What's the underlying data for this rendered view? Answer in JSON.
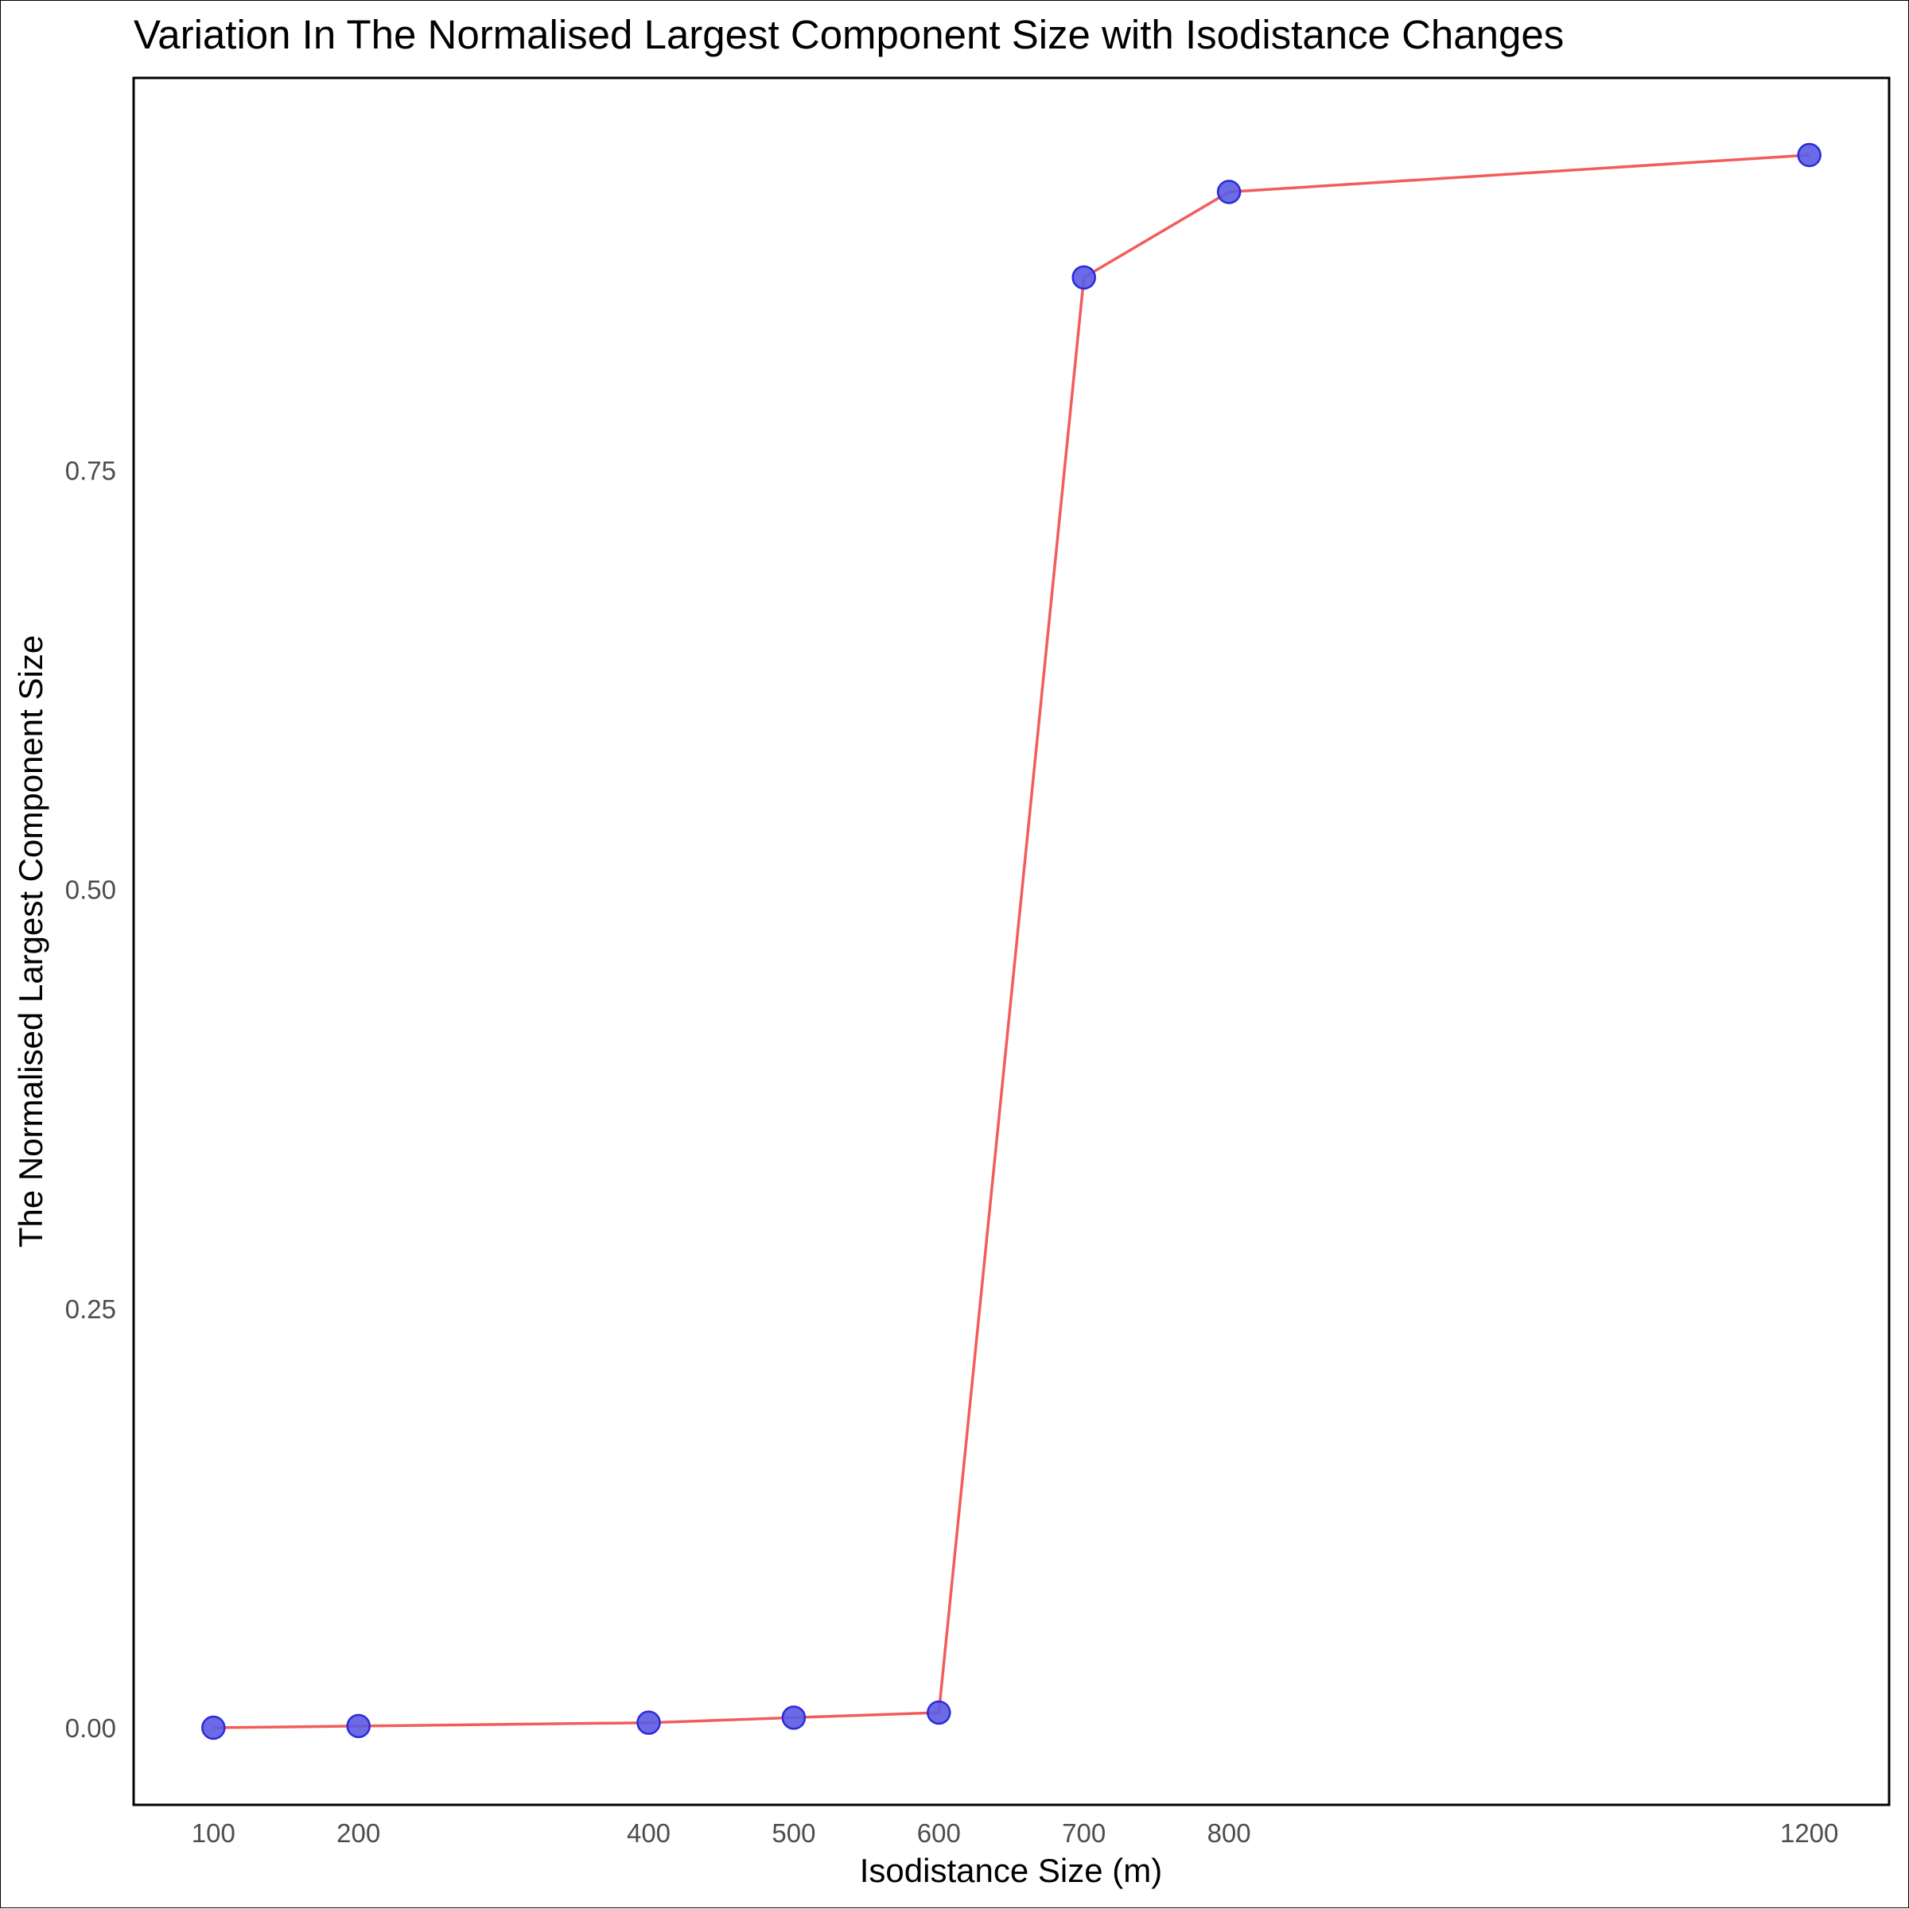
{
  "chart_data": {
    "type": "line",
    "title": "Variation In The Normalised Largest Component Size with Isodistance Changes",
    "xlabel": "Isodistance Size (m)",
    "ylabel": "The Normalised Largest Component Size",
    "x": [
      100,
      200,
      400,
      500,
      600,
      700,
      800,
      1200
    ],
    "series": [
      {
        "values": [
          0.0,
          0.001,
          0.003,
          0.006,
          0.009,
          0.865,
          0.916,
          0.938
        ]
      }
    ],
    "x_ticks": [
      100,
      200,
      400,
      500,
      600,
      700,
      800,
      1200
    ],
    "y_ticks": [
      0.0,
      0.25,
      0.5,
      0.75
    ],
    "y_tick_labels": [
      "0.00",
      "0.25",
      "0.50",
      "0.75"
    ],
    "xlim": [
      45,
      1255
    ],
    "ylim": [
      -0.046,
      0.984
    ],
    "grid": false,
    "line_color": "#f25c5c",
    "point_color": "#5b5be6",
    "point_edge_color": "#2b2bd6"
  }
}
